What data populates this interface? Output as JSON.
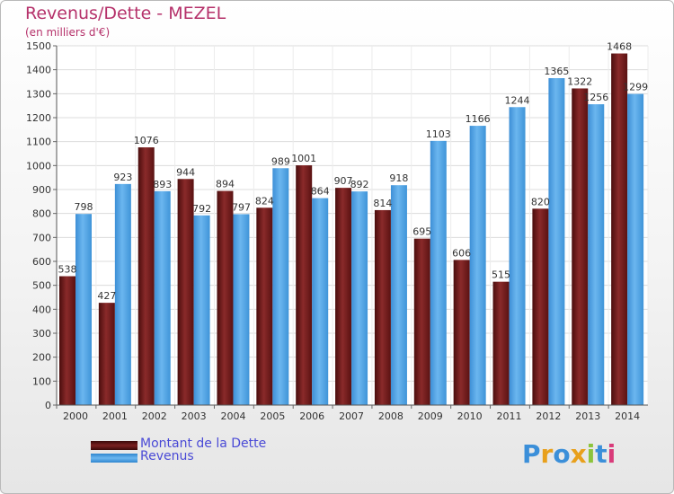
{
  "title": "Revenus/Dette - MEZEL",
  "subtitle": "(en milliers d'€)",
  "colors": {
    "dette": "#6b1a1a",
    "revenus": "#4fa6e8",
    "title": "#b5316a",
    "legend_text": "#4a4ad6"
  },
  "legend": {
    "dette_label": "Montant de la Dette",
    "revenus_label": "Revenus"
  },
  "logo": {
    "letters": [
      "P",
      "r",
      "o",
      "x",
      "i",
      "t",
      "i"
    ]
  },
  "chart_data": {
    "type": "bar",
    "title": "Revenus/Dette - MEZEL",
    "subtitle": "(en milliers d'€)",
    "categories": [
      "2000",
      "2001",
      "2002",
      "2003",
      "2004",
      "2005",
      "2006",
      "2007",
      "2008",
      "2009",
      "2010",
      "2011",
      "2012",
      "2013",
      "2014"
    ],
    "series": [
      {
        "name": "Montant de la Dette",
        "color": "#6b1a1a",
        "values": [
          538,
          427,
          1076,
          944,
          894,
          824,
          1001,
          907,
          814,
          695,
          606,
          515,
          820,
          1322,
          1468
        ]
      },
      {
        "name": "Revenus",
        "color": "#4fa6e8",
        "values": [
          798,
          923,
          893,
          792,
          797,
          989,
          864,
          892,
          918,
          1103,
          1166,
          1244,
          1365,
          1256,
          1299
        ]
      }
    ],
    "yticks": [
      0,
      100,
      200,
      300,
      400,
      500,
      600,
      700,
      800,
      900,
      1000,
      1100,
      1200,
      1300,
      1400,
      1500
    ],
    "ylim": [
      0,
      1500
    ],
    "grid": true,
    "legend_position": "bottom-left"
  }
}
